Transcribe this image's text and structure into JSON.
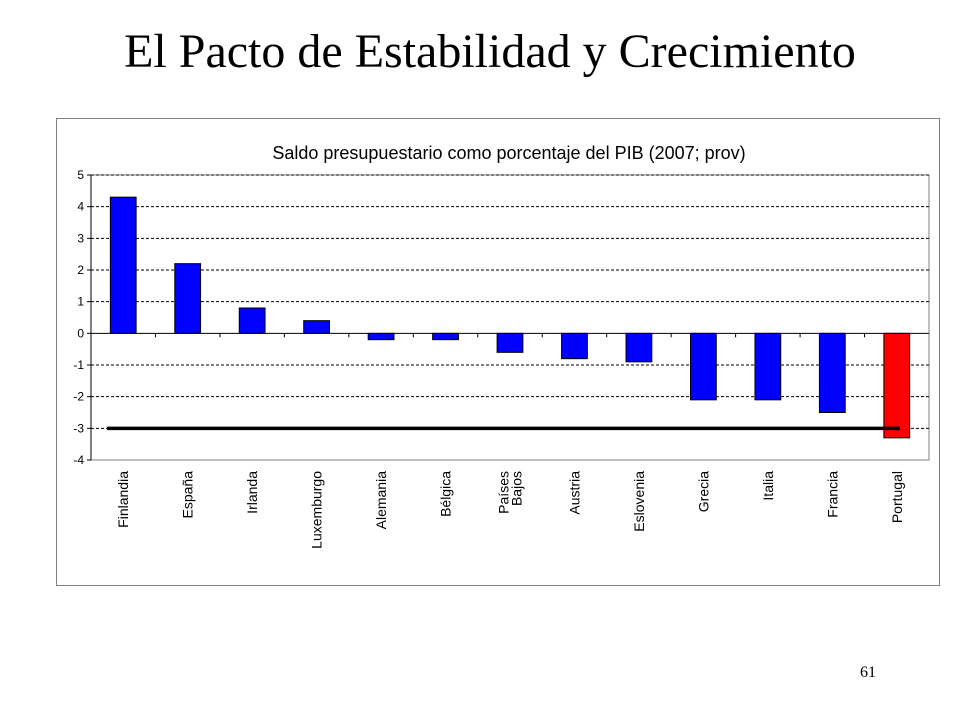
{
  "slide": {
    "title": "El Pacto de Estabilidad y Crecimiento",
    "page_number": "61"
  },
  "colors": {
    "bar_default": "#0000ff",
    "bar_highlight": "#ff0000",
    "reference_line": "#000000",
    "grid": "#000000"
  },
  "chart_data": {
    "type": "bar",
    "title": "Saldo presupuestario como porcentaje del PIB (2007; prov)",
    "xlabel": "",
    "ylabel": "",
    "ylim": [
      -4,
      5
    ],
    "yticks": [
      5,
      4,
      3,
      2,
      1,
      0,
      -1,
      -2,
      -3,
      -4
    ],
    "grid": "dashed horizontal",
    "categories": [
      "Finlandia",
      "España",
      "Irlanda",
      "Luxemburgo",
      "Alemania",
      "Bélgica",
      "Países Bajos",
      "Austria",
      "Eslovenia",
      "Grecia",
      "Italia",
      "Francia",
      "Portugal"
    ],
    "values": [
      4.3,
      2.2,
      0.8,
      0.4,
      -0.2,
      -0.2,
      -0.6,
      -0.8,
      -0.9,
      -2.1,
      -2.1,
      -2.5,
      -3.3
    ],
    "highlight_category": "Portugal",
    "reference_line": {
      "y": -3
    }
  }
}
